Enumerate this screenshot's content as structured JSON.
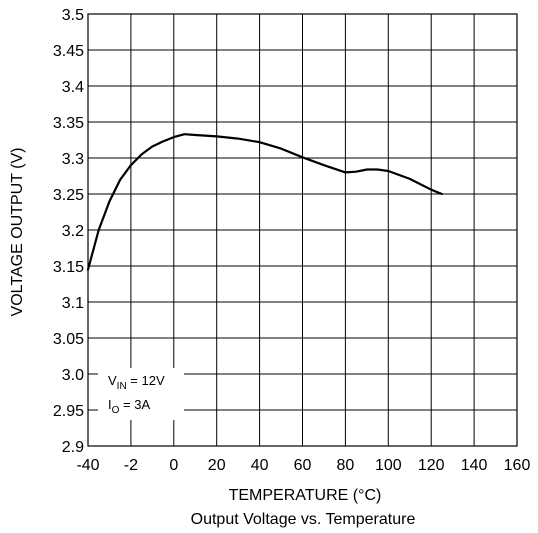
{
  "chart_data": {
    "type": "line",
    "title": "Output Voltage vs. Temperature",
    "xlabel": "TEMPERATURE (°C)",
    "ylabel": "VOLTAGE OUTPUT (V)",
    "xlim": [
      -40,
      160
    ],
    "ylim": [
      2.9,
      3.5
    ],
    "x_ticks": [
      "-40",
      "-2",
      "0",
      "20",
      "40",
      "60",
      "80",
      "100",
      "120",
      "140",
      "160"
    ],
    "y_ticks": [
      "3.5",
      "3.45",
      "3.4",
      "3.35",
      "3.3",
      "3.25",
      "3.2",
      "3.15",
      "3.1",
      "3.05",
      "3.0",
      "2.95",
      "2.9"
    ],
    "grid": true,
    "annotation": {
      "line1": {
        "prefix": "V",
        "sub": "IN",
        "suffix": " = 12V"
      },
      "line2": {
        "prefix": "I",
        "sub": "O",
        "suffix": " = 3A"
      }
    },
    "series": [
      {
        "color": "#000000",
        "x": [
          -40,
          -35,
          -30,
          -25,
          -20,
          -15,
          -10,
          -5,
          0,
          5,
          10,
          20,
          30,
          40,
          50,
          60,
          70,
          80,
          85,
          90,
          95,
          100,
          110,
          120,
          125
        ],
        "y": [
          3.145,
          3.2,
          3.24,
          3.27,
          3.29,
          3.305,
          3.316,
          3.323,
          3.329,
          3.333,
          3.332,
          3.33,
          3.327,
          3.322,
          3.313,
          3.301,
          3.29,
          3.28,
          3.281,
          3.284,
          3.284,
          3.282,
          3.271,
          3.256,
          3.25
        ]
      }
    ]
  }
}
